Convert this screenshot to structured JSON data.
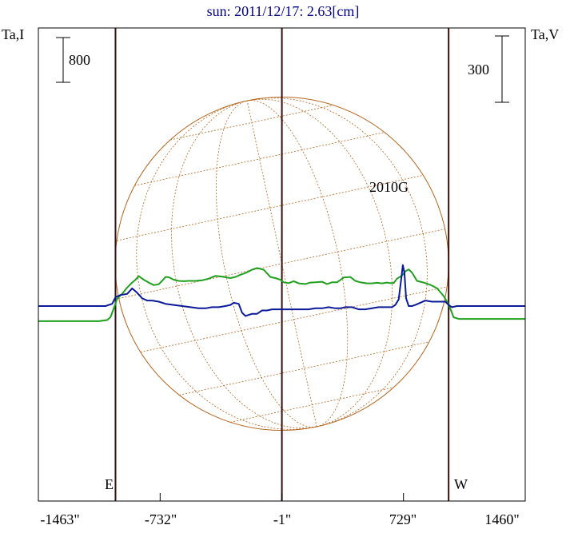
{
  "chart_data": {
    "type": "line",
    "title": "sun: 2011/12/17: 2.63[cm]",
    "left_axis_label": "Ta,I",
    "right_axis_label": "Ta,V",
    "left_scale_label": "800",
    "right_scale_label": "300",
    "x_tick_labels": [
      "-1463\"",
      "-732\"",
      "-1\"",
      "729\"",
      "1460\""
    ],
    "x_tick_values": [
      -1463,
      -732,
      -1,
      729,
      1460
    ],
    "xlim": [
      -1463,
      1460
    ],
    "limb_labels": {
      "east": "E",
      "west": "W"
    },
    "limb_positions": [
      -1000,
      -1,
      1000
    ],
    "annotations": [
      {
        "text": "2010G",
        "x": 729
      }
    ],
    "colors": {
      "title": "#000080",
      "stokes_i": "#1fa01f",
      "stokes_v": "#0a1a99",
      "disk": "#b5651d",
      "limb_lines": "#3a0f0f",
      "frame": "#000000"
    },
    "series": [
      {
        "name": "I",
        "x": [
          -1463,
          -1100,
          -1050,
          -1030,
          -1005,
          -990,
          -960,
          -930,
          -900,
          -880,
          -860,
          -830,
          -800,
          -770,
          -740,
          -720,
          -700,
          -680,
          -650,
          -620,
          -590,
          -560,
          -520,
          -480,
          -440,
          -400,
          -370,
          -340,
          -310,
          -280,
          -250,
          -220,
          -180,
          -150,
          -110,
          -70,
          -40,
          -10,
          10,
          40,
          70,
          100,
          140,
          170,
          200,
          240,
          270,
          300,
          330,
          370,
          410,
          440,
          470,
          510,
          540,
          570,
          600,
          630,
          650,
          670,
          690,
          720,
          740,
          760,
          780,
          810,
          850,
          890,
          930,
          970,
          1000,
          1030,
          1060,
          1100,
          1460
        ],
        "y": [
          -270,
          -270,
          -250,
          -200,
          0,
          130,
          220,
          330,
          420,
          470,
          535,
          470,
          420,
          375,
          390,
          450,
          520,
          515,
          470,
          450,
          445,
          450,
          450,
          460,
          490,
          540,
          530,
          515,
          500,
          520,
          560,
          590,
          650,
          680,
          650,
          520,
          500,
          470,
          425,
          410,
          445,
          405,
          395,
          420,
          425,
          435,
          395,
          425,
          425,
          510,
          520,
          450,
          425,
          405,
          405,
          415,
          405,
          420,
          410,
          410,
          490,
          545,
          620,
          655,
          600,
          450,
          420,
          380,
          320,
          180,
          30,
          -200,
          -230,
          -230,
          -230
        ]
      },
      {
        "name": "V",
        "x": [
          -1463,
          -1060,
          -1020,
          -1000,
          -970,
          -930,
          -900,
          -870,
          -840,
          -810,
          -780,
          -740,
          -700,
          -650,
          -600,
          -550,
          -500,
          -460,
          -420,
          -380,
          -340,
          -310,
          -290,
          -260,
          -240,
          -220,
          -200,
          -180,
          -150,
          -120,
          -90,
          -60,
          -30,
          0,
          40,
          80,
          120,
          160,
          200,
          240,
          280,
          320,
          350,
          380,
          420,
          460,
          500,
          540,
          580,
          620,
          660,
          680,
          700,
          715,
          725,
          735,
          745,
          760,
          780,
          800,
          830,
          860,
          900,
          940,
          980,
          1000,
          1020,
          1050,
          1080,
          1100,
          1460
        ],
        "y": [
          0,
          0,
          10,
          40,
          50,
          55,
          80,
          60,
          35,
          25,
          25,
          20,
          10,
          5,
          0,
          -5,
          -10,
          -10,
          -5,
          -5,
          0,
          5,
          15,
          10,
          -30,
          -45,
          -40,
          -35,
          -35,
          -20,
          -20,
          -15,
          -15,
          -15,
          -15,
          -15,
          -15,
          -15,
          -10,
          -10,
          -5,
          -10,
          -10,
          -5,
          -5,
          -15,
          -15,
          -10,
          -5,
          -5,
          -5,
          5,
          30,
          120,
          185,
          150,
          35,
          0,
          0,
          5,
          15,
          25,
          20,
          20,
          20,
          5,
          -5,
          0,
          0,
          0,
          0
        ]
      }
    ]
  }
}
